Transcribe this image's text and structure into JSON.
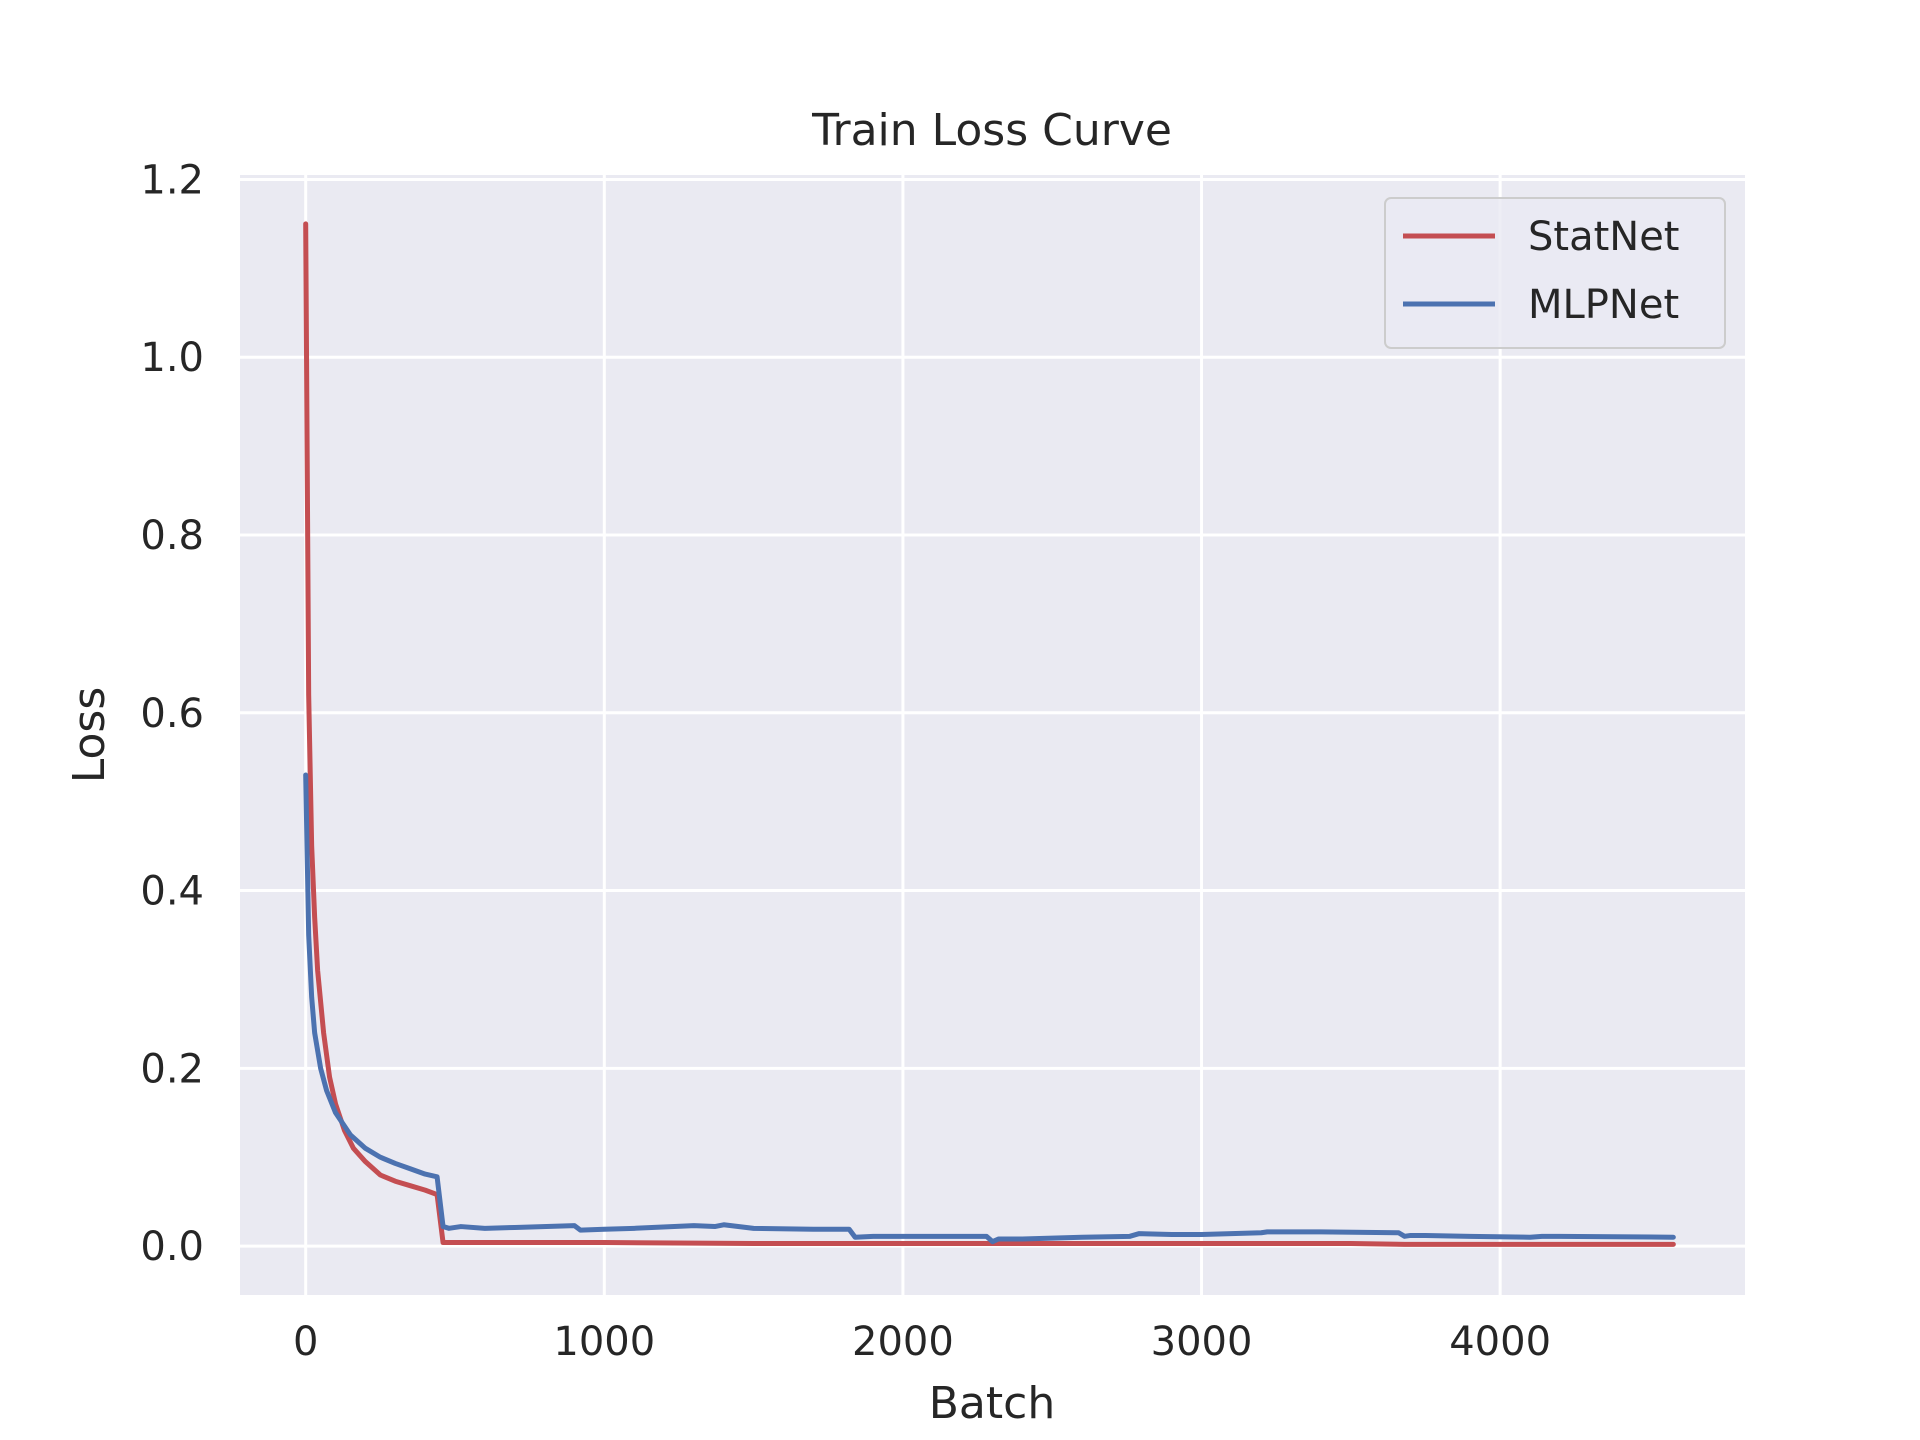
{
  "chart_data": {
    "type": "line",
    "title": "Train Loss Curve",
    "xlabel": "Batch",
    "ylabel": "Loss",
    "xlim": [
      -220,
      4820
    ],
    "ylim": [
      -0.055,
      1.205
    ],
    "xticks": [
      0,
      1000,
      2000,
      3000,
      4000
    ],
    "xtick_labels": [
      "0",
      "1000",
      "2000",
      "3000",
      "4000"
    ],
    "yticks": [
      0.0,
      0.2,
      0.4,
      0.6,
      0.8,
      1.0,
      1.2
    ],
    "ytick_labels": [
      "0.0",
      "0.2",
      "0.4",
      "0.6",
      "0.8",
      "1.0",
      "1.2"
    ],
    "grid": true,
    "legend_position": "top-right",
    "background_color": "#eaeaf2",
    "series": [
      {
        "name": "StatNet",
        "color": "#c44e52",
        "x": [
          0,
          10,
          20,
          30,
          40,
          60,
          80,
          100,
          130,
          160,
          200,
          250,
          300,
          350,
          400,
          440,
          460,
          500,
          1000,
          1500,
          2000,
          2500,
          3000,
          3500,
          3680,
          4000,
          4580
        ],
        "y": [
          1.15,
          0.62,
          0.45,
          0.37,
          0.31,
          0.24,
          0.19,
          0.16,
          0.13,
          0.11,
          0.095,
          0.08,
          0.073,
          0.068,
          0.063,
          0.058,
          0.004,
          0.004,
          0.004,
          0.003,
          0.003,
          0.003,
          0.003,
          0.003,
          0.002,
          0.002,
          0.002
        ]
      },
      {
        "name": "MLPNet",
        "color": "#4c72b0",
        "x": [
          0,
          10,
          20,
          30,
          50,
          70,
          100,
          150,
          200,
          250,
          300,
          350,
          400,
          440,
          460,
          480,
          520,
          600,
          700,
          900,
          920,
          1000,
          1100,
          1300,
          1370,
          1400,
          1500,
          1700,
          1820,
          1840,
          1900,
          2000,
          2100,
          2280,
          2300,
          2320,
          2400,
          2600,
          2760,
          2790,
          2900,
          3000,
          3200,
          3220,
          3300,
          3400,
          3660,
          3680,
          3700,
          3750,
          3900,
          4100,
          4140,
          4200,
          4580
        ],
        "y": [
          0.53,
          0.35,
          0.28,
          0.24,
          0.2,
          0.175,
          0.15,
          0.125,
          0.11,
          0.1,
          0.093,
          0.087,
          0.081,
          0.078,
          0.022,
          0.02,
          0.022,
          0.02,
          0.021,
          0.023,
          0.018,
          0.019,
          0.02,
          0.023,
          0.022,
          0.024,
          0.02,
          0.019,
          0.019,
          0.01,
          0.011,
          0.011,
          0.011,
          0.011,
          0.005,
          0.008,
          0.008,
          0.01,
          0.011,
          0.014,
          0.013,
          0.013,
          0.015,
          0.016,
          0.016,
          0.016,
          0.015,
          0.011,
          0.012,
          0.012,
          0.011,
          0.01,
          0.011,
          0.011,
          0.01
        ]
      }
    ]
  }
}
